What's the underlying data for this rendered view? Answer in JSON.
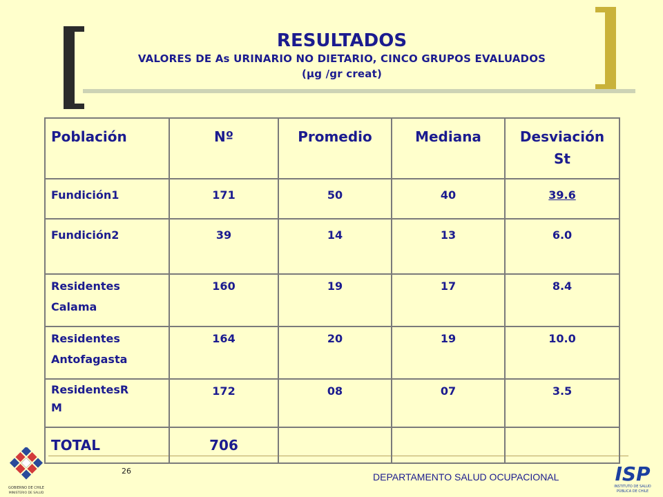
{
  "title": {
    "main": "RESULTADOS",
    "subtitle_line1": "VALORES DE As URINARIO NO DIETARIO, CINCO GRUPOS EVALUADOS",
    "subtitle_line2": "(µg /gr creat)"
  },
  "table": {
    "headers": {
      "poblacion": "Población",
      "n": "Nº",
      "promedio": "Promedio",
      "mediana": "Mediana",
      "desviacion_line1": "Desviación",
      "desviacion_line2": "St"
    },
    "rows": [
      {
        "pop_line1": "Fundición1",
        "pop_line2": "",
        "n": "171",
        "promedio": "50",
        "mediana": "40",
        "desviacion": "39.6"
      },
      {
        "pop_line1": "Fundición2",
        "pop_line2": "",
        "n": "39",
        "promedio": "14",
        "mediana": "13",
        "desviacion": "6.0"
      },
      {
        "pop_line1": "Residentes",
        "pop_line2": "Calama",
        "n": "160",
        "promedio": "19",
        "mediana": "17",
        "desviacion": "8.4"
      },
      {
        "pop_line1": "Residentes",
        "pop_line2": "Antofagasta",
        "n": "164",
        "promedio": "20",
        "mediana": "19",
        "desviacion": "10.0"
      },
      {
        "pop_line1": "ResidentesR",
        "pop_line2": "M",
        "n": "172",
        "promedio": "08",
        "mediana": "07",
        "desviacion": "3.5"
      }
    ],
    "total": {
      "label": "TOTAL",
      "n": "706"
    }
  },
  "footer": {
    "page_number": "26",
    "department": "DEPARTAMENTO SALUD OCUPACIONAL",
    "logo_left_line1": "GOBIERNO DE CHILE",
    "logo_left_line2": "MINISTERIO DE SALUD",
    "logo_right_text": "ISP",
    "logo_right_sub1": "INSTITUTO DE SALUD",
    "logo_right_sub2": "PÚBLICA DE CHILE"
  },
  "colors": {
    "background": "#ffffcc",
    "text": "#1b1b8f",
    "bracket_dark": "#2b2b2b",
    "bracket_gold": "#c9b23a"
  }
}
